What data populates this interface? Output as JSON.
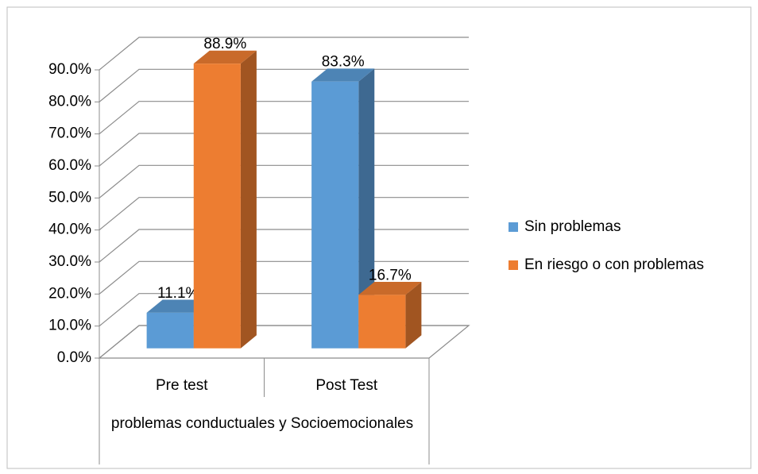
{
  "chart_data": {
    "type": "bar3d",
    "categories": [
      "Pre test",
      "Post Test"
    ],
    "group_label": "problemas conductuales y Socioemocionales",
    "series": [
      {
        "name": "Sin problemas",
        "color": "#5b9bd5",
        "values": [
          11.1,
          83.3
        ],
        "value_labels": [
          "11.1%",
          "83.3%"
        ]
      },
      {
        "name": "En riesgo o con problemas",
        "color": "#ed7d31",
        "values": [
          88.9,
          16.7
        ],
        "value_labels": [
          "88.9%",
          "16.7%"
        ]
      }
    ],
    "ylim": [
      0,
      90
    ],
    "yticks": [
      {
        "value": 0,
        "label": "0.0%"
      },
      {
        "value": 10,
        "label": "10.0%"
      },
      {
        "value": 20,
        "label": "20.0%"
      },
      {
        "value": 30,
        "label": "30.0%"
      },
      {
        "value": 40,
        "label": "40.0%"
      },
      {
        "value": 50,
        "label": "50.0%"
      },
      {
        "value": 60,
        "label": "60.0%"
      },
      {
        "value": 70,
        "label": "70.0%"
      },
      {
        "value": 80,
        "label": "80.0%"
      },
      {
        "value": 90,
        "label": "90.0%"
      }
    ],
    "grid": true,
    "legend": "right"
  }
}
